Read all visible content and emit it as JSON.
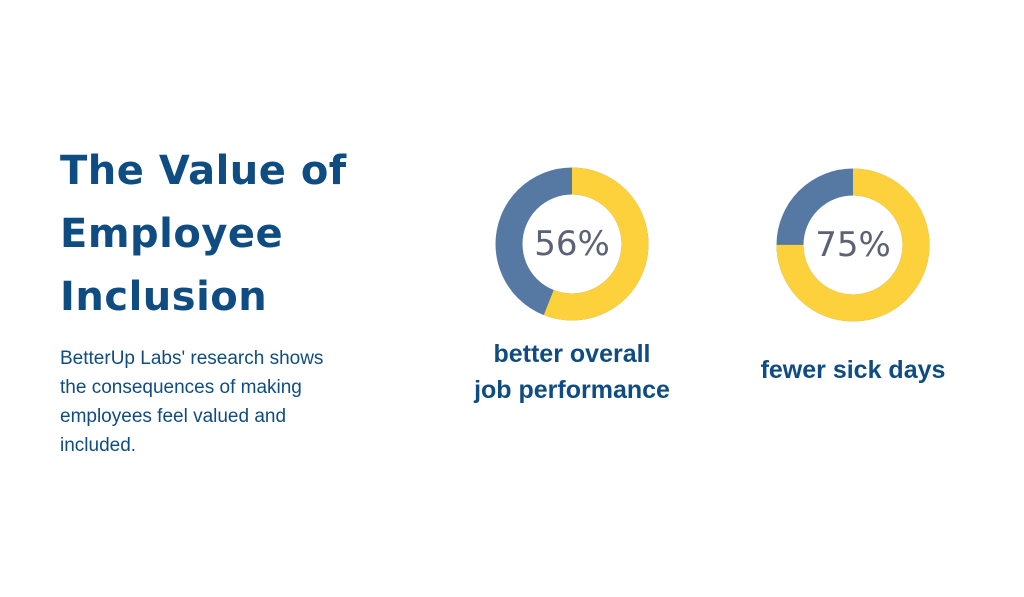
{
  "title_lines": [
    "The Value of",
    "Employee",
    "Inclusion"
  ],
  "description_lines": [
    "BetterUp Labs' research shows",
    "the consequences of making",
    "employees feel valued and",
    "included."
  ],
  "colors": {
    "title": "#0f4c81",
    "text": "#0f4c81",
    "value_arc": "#fdd13c",
    "remainder_arc": "#5579a3",
    "percent_label": "#5b6275"
  },
  "chart_data": [
    {
      "type": "pie",
      "variant": "donut",
      "value": 56,
      "max": 100,
      "label": "56%",
      "caption_lines": [
        "better overall",
        "job performance"
      ]
    },
    {
      "type": "pie",
      "variant": "donut",
      "value": 75,
      "max": 100,
      "label": "75%",
      "caption_lines": [
        "fewer sick days"
      ]
    }
  ]
}
